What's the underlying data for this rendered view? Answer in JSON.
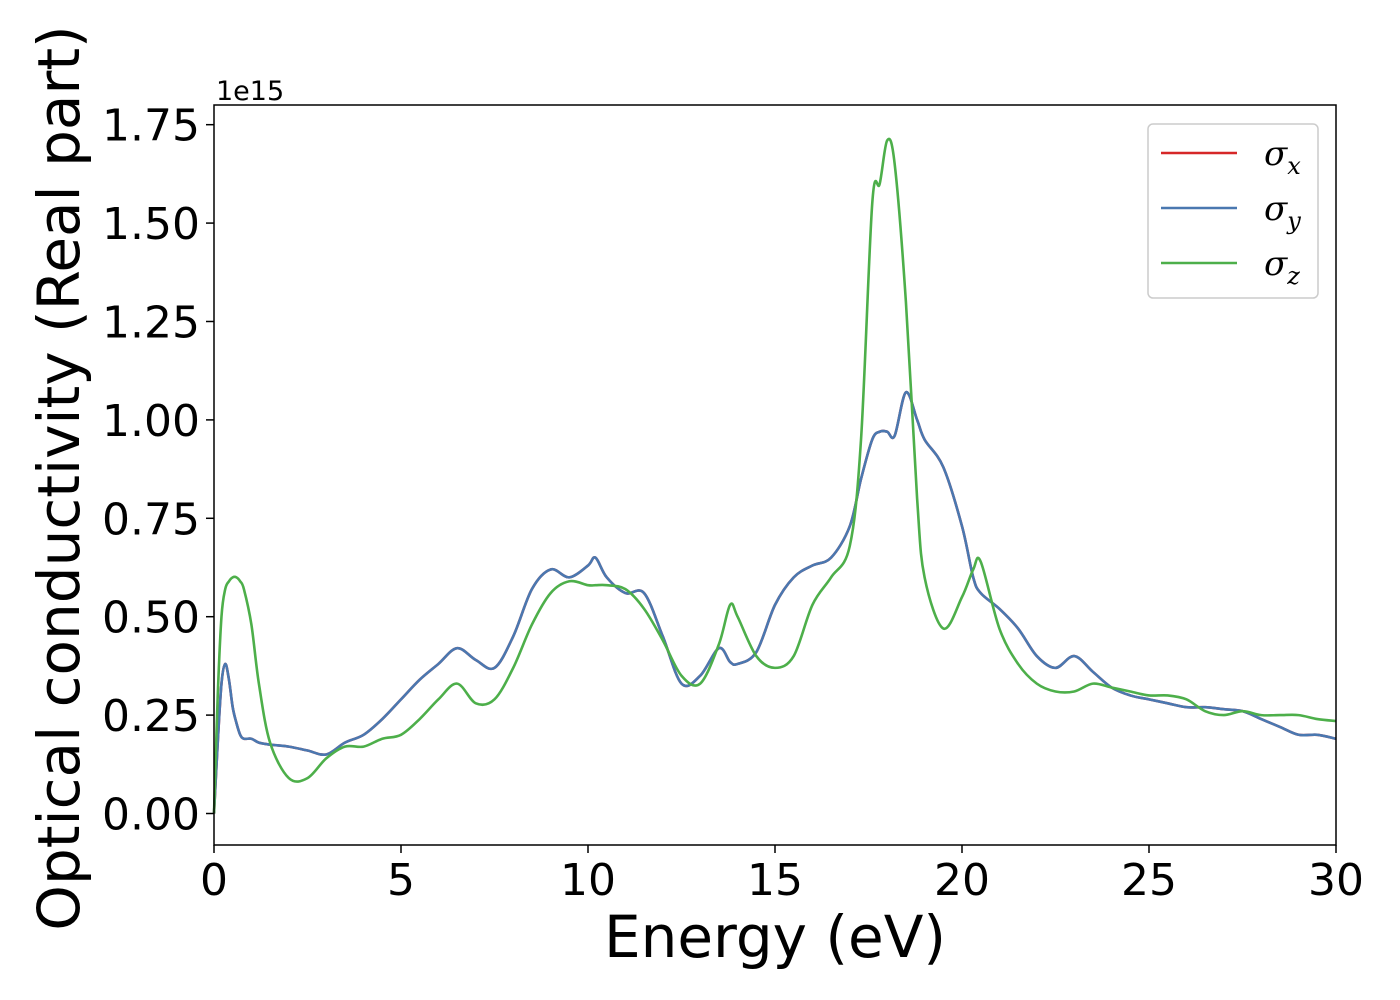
{
  "chart_data": {
    "type": "line",
    "title": "",
    "xlabel": "Energy (eV)",
    "ylabel": "Optical conductivity (Real part)",
    "y_offset_label": "1e15",
    "xlim": [
      0,
      30
    ],
    "ylim": [
      -0.08,
      1.8
    ],
    "x_ticks": [
      0,
      5,
      10,
      15,
      20,
      25,
      30
    ],
    "x_tick_labels": [
      "0",
      "5",
      "10",
      "15",
      "20",
      "25",
      "30"
    ],
    "y_ticks": [
      0.0,
      0.25,
      0.5,
      0.75,
      1.0,
      1.25,
      1.5,
      1.75
    ],
    "y_tick_labels": [
      "0.00",
      "0.25",
      "0.50",
      "0.75",
      "1.00",
      "1.25",
      "1.50",
      "1.75"
    ],
    "grid": false,
    "legend_position": "top-right",
    "x": [
      0,
      0.1,
      0.2,
      0.3,
      0.4,
      0.5,
      0.6,
      0.7,
      0.8,
      1.0,
      1.2,
      1.5,
      2.0,
      2.5,
      3.0,
      3.5,
      4.0,
      4.5,
      5.0,
      5.5,
      6.0,
      6.5,
      7.0,
      7.5,
      8.0,
      8.5,
      9.0,
      9.5,
      10.0,
      10.2,
      10.5,
      11.0,
      11.5,
      12.0,
      12.5,
      13.0,
      13.5,
      13.8,
      14.0,
      14.5,
      15.0,
      15.5,
      16.0,
      16.5,
      17.0,
      17.3,
      17.6,
      17.8,
      18.0,
      18.2,
      18.5,
      18.8,
      19.0,
      19.5,
      20.0,
      20.3,
      20.5,
      21.0,
      21.5,
      22.0,
      22.5,
      23.0,
      23.5,
      24.0,
      24.5,
      25.0,
      25.5,
      26.0,
      26.5,
      27.0,
      27.5,
      28.0,
      28.5,
      29.0,
      29.5,
      30.0
    ],
    "series": [
      {
        "name": "σx",
        "color": "#d62728",
        "values": [
          0.0,
          0.18,
          0.33,
          0.38,
          0.34,
          0.27,
          0.23,
          0.2,
          0.19,
          0.19,
          0.18,
          0.175,
          0.17,
          0.16,
          0.15,
          0.18,
          0.2,
          0.24,
          0.29,
          0.34,
          0.38,
          0.42,
          0.39,
          0.37,
          0.45,
          0.57,
          0.62,
          0.6,
          0.63,
          0.65,
          0.6,
          0.56,
          0.56,
          0.45,
          0.33,
          0.35,
          0.42,
          0.385,
          0.38,
          0.41,
          0.53,
          0.6,
          0.63,
          0.65,
          0.73,
          0.85,
          0.95,
          0.97,
          0.97,
          0.96,
          1.07,
          1.0,
          0.95,
          0.88,
          0.73,
          0.6,
          0.56,
          0.52,
          0.47,
          0.4,
          0.37,
          0.4,
          0.36,
          0.32,
          0.3,
          0.29,
          0.28,
          0.27,
          0.27,
          0.265,
          0.26,
          0.24,
          0.22,
          0.2,
          0.2,
          0.19
        ]
      },
      {
        "name": "σy",
        "color": "#4a78b0",
        "values": [
          0.0,
          0.18,
          0.33,
          0.38,
          0.34,
          0.27,
          0.23,
          0.2,
          0.19,
          0.19,
          0.18,
          0.175,
          0.17,
          0.16,
          0.15,
          0.18,
          0.2,
          0.24,
          0.29,
          0.34,
          0.38,
          0.42,
          0.39,
          0.37,
          0.45,
          0.57,
          0.62,
          0.6,
          0.63,
          0.65,
          0.6,
          0.56,
          0.56,
          0.45,
          0.33,
          0.35,
          0.42,
          0.385,
          0.38,
          0.41,
          0.53,
          0.6,
          0.63,
          0.65,
          0.73,
          0.85,
          0.95,
          0.97,
          0.97,
          0.96,
          1.07,
          1.0,
          0.95,
          0.88,
          0.73,
          0.6,
          0.56,
          0.52,
          0.47,
          0.4,
          0.37,
          0.4,
          0.36,
          0.32,
          0.3,
          0.29,
          0.28,
          0.27,
          0.27,
          0.265,
          0.26,
          0.24,
          0.22,
          0.2,
          0.2,
          0.19
        ]
      },
      {
        "name": "σz",
        "color": "#4daf4a",
        "values": [
          0.0,
          0.3,
          0.5,
          0.57,
          0.59,
          0.6,
          0.6,
          0.59,
          0.57,
          0.48,
          0.33,
          0.18,
          0.09,
          0.09,
          0.14,
          0.17,
          0.17,
          0.19,
          0.2,
          0.24,
          0.29,
          0.33,
          0.28,
          0.29,
          0.37,
          0.48,
          0.56,
          0.59,
          0.58,
          0.58,
          0.58,
          0.57,
          0.52,
          0.44,
          0.35,
          0.33,
          0.43,
          0.53,
          0.5,
          0.4,
          0.37,
          0.4,
          0.53,
          0.6,
          0.68,
          0.95,
          1.55,
          1.6,
          1.71,
          1.65,
          1.3,
          0.8,
          0.6,
          0.47,
          0.55,
          0.62,
          0.64,
          0.47,
          0.38,
          0.33,
          0.31,
          0.31,
          0.33,
          0.32,
          0.31,
          0.3,
          0.3,
          0.29,
          0.26,
          0.25,
          0.26,
          0.25,
          0.25,
          0.25,
          0.24,
          0.235
        ]
      }
    ]
  }
}
